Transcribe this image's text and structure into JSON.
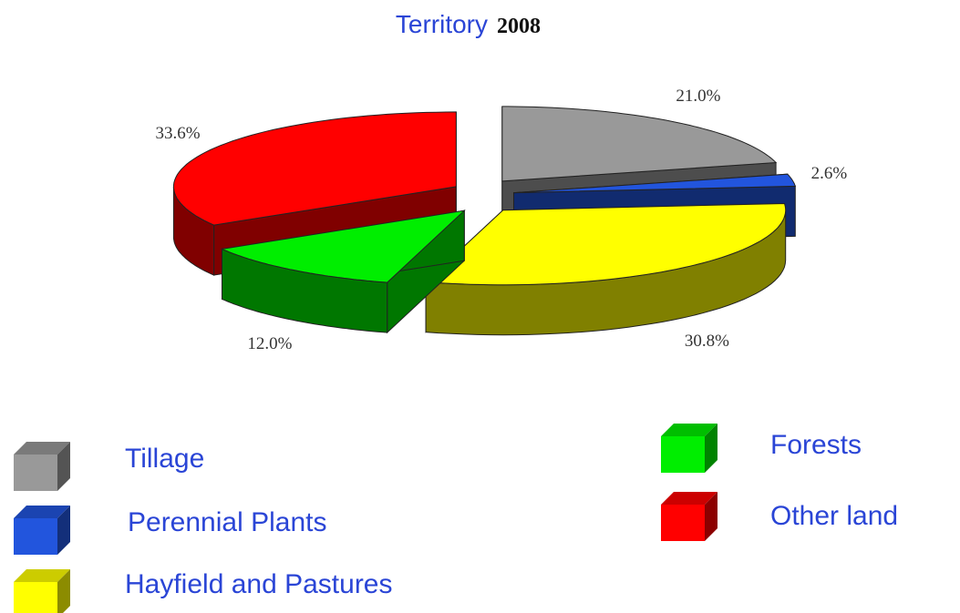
{
  "chart_data": {
    "type": "pie3d",
    "title": "Territory",
    "subtitle": "2008",
    "categories": [
      "Tillage",
      "Perennial Plants",
      "Hayfield and Pastures",
      "Forests",
      "Other land"
    ],
    "values": [
      21.0,
      2.6,
      30.8,
      12.0,
      33.6
    ],
    "value_labels": [
      "21.0%",
      "2.6%",
      "30.8%",
      "12.0%",
      "33.6%"
    ],
    "colors": [
      "#999999",
      "#2255dd",
      "#ffff00",
      "#00ee00",
      "#ff0000"
    ],
    "legend": "bottom"
  }
}
